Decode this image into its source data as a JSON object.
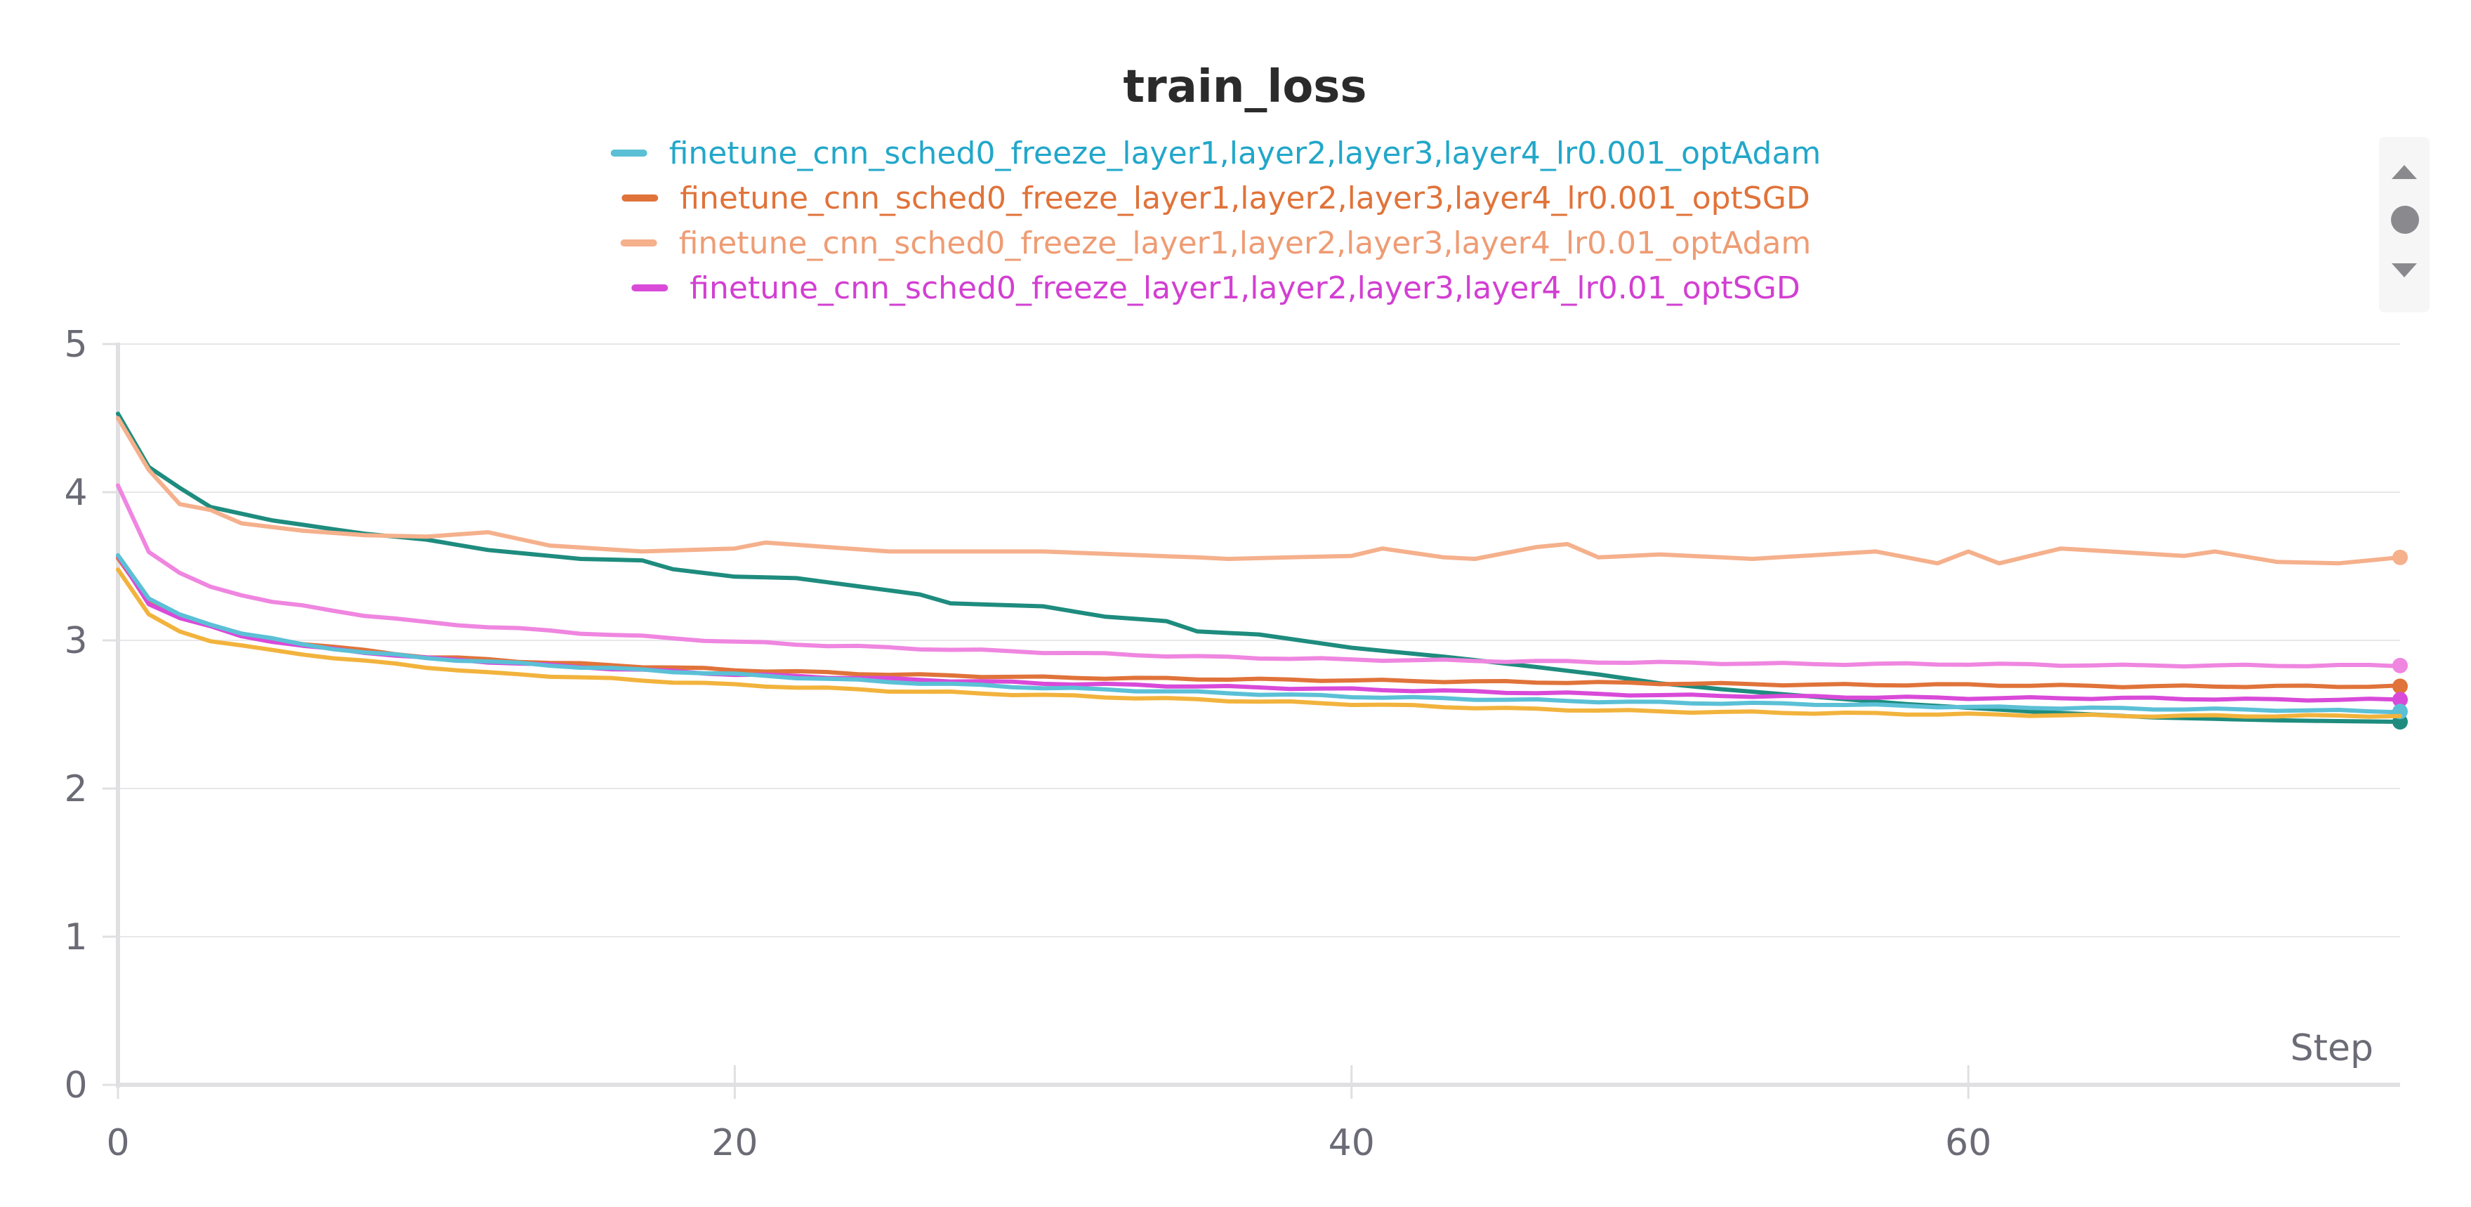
{
  "chart_data": {
    "type": "line",
    "title": "train_loss",
    "xlabel": "Step",
    "ylabel": "",
    "xlim": [
      0,
      74
    ],
    "ylim": [
      0,
      5
    ],
    "x_ticks": [
      0,
      20,
      40,
      60
    ],
    "y_ticks": [
      0,
      1,
      2,
      3,
      4,
      5
    ],
    "grid": true,
    "legend_position": "top-center",
    "legend": [
      {
        "name": "finetune_cnn_sched0_freeze_layer1,layer2,layer3,layer4_lr0.001_optAdam",
        "color": "#5bc0d6",
        "text_color": "#22a7c9"
      },
      {
        "name": "finetune_cnn_sched0_freeze_layer1,layer2,layer3,layer4_lr0.001_optSGD",
        "color": "#e0733a",
        "text_color": "#e0733a"
      },
      {
        "name": "finetune_cnn_sched0_freeze_layer1,layer2,layer3,layer4_lr0.01_optAdam",
        "color": "#f5b08c",
        "text_color": "#ee9c74"
      },
      {
        "name": "finetune_cnn_sched0_freeze_layer1,layer2,layer3,layer4_lr0.01_optSGD",
        "color": "#d94ad9",
        "text_color": "#d23fd2"
      }
    ],
    "series": [
      {
        "color": "#1e8c7e",
        "anchors": [
          [
            0,
            4.53
          ],
          [
            1,
            4.17
          ],
          [
            2,
            4.03
          ],
          [
            3,
            3.9
          ],
          [
            5,
            3.81
          ],
          [
            8,
            3.72
          ],
          [
            10,
            3.68
          ],
          [
            12,
            3.61
          ],
          [
            15,
            3.55
          ],
          [
            17,
            3.54
          ],
          [
            18,
            3.48
          ],
          [
            20,
            3.43
          ],
          [
            22,
            3.42
          ],
          [
            26,
            3.31
          ],
          [
            27,
            3.25
          ],
          [
            30,
            3.23
          ],
          [
            32,
            3.16
          ],
          [
            34,
            3.13
          ],
          [
            35,
            3.06
          ],
          [
            37,
            3.04
          ],
          [
            40,
            2.95
          ],
          [
            43,
            2.89
          ],
          [
            46,
            2.82
          ],
          [
            48,
            2.77
          ],
          [
            50,
            2.71
          ],
          [
            52,
            2.67
          ],
          [
            55,
            2.62
          ],
          [
            58,
            2.57
          ],
          [
            62,
            2.52
          ],
          [
            66,
            2.48
          ],
          [
            70,
            2.46
          ],
          [
            74,
            2.45
          ]
        ],
        "end_marker": true
      },
      {
        "color": "#e0733a",
        "anchors": [
          [
            0,
            3.55
          ],
          [
            1,
            3.26
          ],
          [
            2,
            3.16
          ],
          [
            4,
            3.04
          ],
          [
            6,
            2.98
          ],
          [
            8,
            2.93
          ],
          [
            10,
            2.89
          ],
          [
            15,
            2.84
          ],
          [
            20,
            2.8
          ],
          [
            25,
            2.77
          ],
          [
            30,
            2.75
          ],
          [
            35,
            2.74
          ],
          [
            40,
            2.73
          ],
          [
            45,
            2.72
          ],
          [
            50,
            2.71
          ],
          [
            55,
            2.7
          ],
          [
            60,
            2.7
          ],
          [
            65,
            2.69
          ],
          [
            70,
            2.69
          ],
          [
            74,
            2.69
          ]
        ],
        "end_marker": true
      },
      {
        "color": "#f5b08c",
        "anchors": [
          [
            0,
            4.5
          ],
          [
            1,
            4.15
          ],
          [
            2,
            3.92
          ],
          [
            3,
            3.88
          ],
          [
            4,
            3.79
          ],
          [
            6,
            3.74
          ],
          [
            8,
            3.71
          ],
          [
            10,
            3.7
          ],
          [
            12,
            3.73
          ],
          [
            14,
            3.64
          ],
          [
            17,
            3.6
          ],
          [
            20,
            3.62
          ],
          [
            21,
            3.66
          ],
          [
            25,
            3.6
          ],
          [
            30,
            3.6
          ],
          [
            35,
            3.56
          ],
          [
            36,
            3.55
          ],
          [
            40,
            3.57
          ],
          [
            41,
            3.62
          ],
          [
            43,
            3.56
          ],
          [
            44,
            3.55
          ],
          [
            46,
            3.63
          ],
          [
            47,
            3.65
          ],
          [
            48,
            3.56
          ],
          [
            50,
            3.58
          ],
          [
            53,
            3.55
          ],
          [
            57,
            3.6
          ],
          [
            59,
            3.52
          ],
          [
            60,
            3.6
          ],
          [
            61,
            3.52
          ],
          [
            63,
            3.62
          ],
          [
            67,
            3.57
          ],
          [
            68,
            3.6
          ],
          [
            70,
            3.53
          ],
          [
            72,
            3.52
          ],
          [
            74,
            3.56
          ]
        ],
        "end_marker": true
      },
      {
        "color": "#d94ad9",
        "anchors": [
          [
            0,
            3.57
          ],
          [
            1,
            3.25
          ],
          [
            2,
            3.15
          ],
          [
            4,
            3.03
          ],
          [
            6,
            2.96
          ],
          [
            8,
            2.92
          ],
          [
            10,
            2.88
          ],
          [
            15,
            2.82
          ],
          [
            20,
            2.77
          ],
          [
            25,
            2.74
          ],
          [
            30,
            2.71
          ],
          [
            35,
            2.69
          ],
          [
            40,
            2.67
          ],
          [
            45,
            2.65
          ],
          [
            50,
            2.63
          ],
          [
            55,
            2.62
          ],
          [
            60,
            2.61
          ],
          [
            65,
            2.61
          ],
          [
            70,
            2.6
          ],
          [
            74,
            2.6
          ]
        ],
        "end_marker": true
      },
      {
        "color": "#ef86e0",
        "anchors": [
          [
            0,
            4.05
          ],
          [
            1,
            3.6
          ],
          [
            2,
            3.45
          ],
          [
            3,
            3.36
          ],
          [
            5,
            3.26
          ],
          [
            8,
            3.17
          ],
          [
            10,
            3.12
          ],
          [
            15,
            3.05
          ],
          [
            20,
            2.99
          ],
          [
            25,
            2.95
          ],
          [
            30,
            2.92
          ],
          [
            35,
            2.89
          ],
          [
            40,
            2.87
          ],
          [
            45,
            2.86
          ],
          [
            50,
            2.85
          ],
          [
            55,
            2.84
          ],
          [
            60,
            2.84
          ],
          [
            65,
            2.83
          ],
          [
            70,
            2.83
          ],
          [
            74,
            2.83
          ]
        ],
        "end_marker": true
      },
      {
        "color": "#5bc0d6",
        "anchors": [
          [
            0,
            3.58
          ],
          [
            1,
            3.28
          ],
          [
            2,
            3.17
          ],
          [
            4,
            3.05
          ],
          [
            6,
            2.97
          ],
          [
            8,
            2.92
          ],
          [
            10,
            2.88
          ],
          [
            15,
            2.82
          ],
          [
            20,
            2.77
          ],
          [
            25,
            2.72
          ],
          [
            30,
            2.68
          ],
          [
            35,
            2.65
          ],
          [
            40,
            2.62
          ],
          [
            45,
            2.6
          ],
          [
            50,
            2.58
          ],
          [
            55,
            2.57
          ],
          [
            60,
            2.55
          ],
          [
            65,
            2.54
          ],
          [
            70,
            2.53
          ],
          [
            74,
            2.52
          ]
        ],
        "end_marker": true
      },
      {
        "color": "#f2b33d",
        "anchors": [
          [
            0,
            3.48
          ],
          [
            1,
            3.17
          ],
          [
            2,
            3.06
          ],
          [
            3,
            3.0
          ],
          [
            5,
            2.93
          ],
          [
            8,
            2.86
          ],
          [
            10,
            2.82
          ],
          [
            12,
            2.78
          ],
          [
            15,
            2.75
          ],
          [
            20,
            2.7
          ],
          [
            25,
            2.66
          ],
          [
            30,
            2.63
          ],
          [
            35,
            2.6
          ],
          [
            40,
            2.57
          ],
          [
            45,
            2.54
          ],
          [
            50,
            2.52
          ],
          [
            55,
            2.51
          ],
          [
            60,
            2.5
          ],
          [
            65,
            2.49
          ],
          [
            70,
            2.49
          ],
          [
            74,
            2.49
          ]
        ],
        "end_marker": false
      }
    ]
  }
}
